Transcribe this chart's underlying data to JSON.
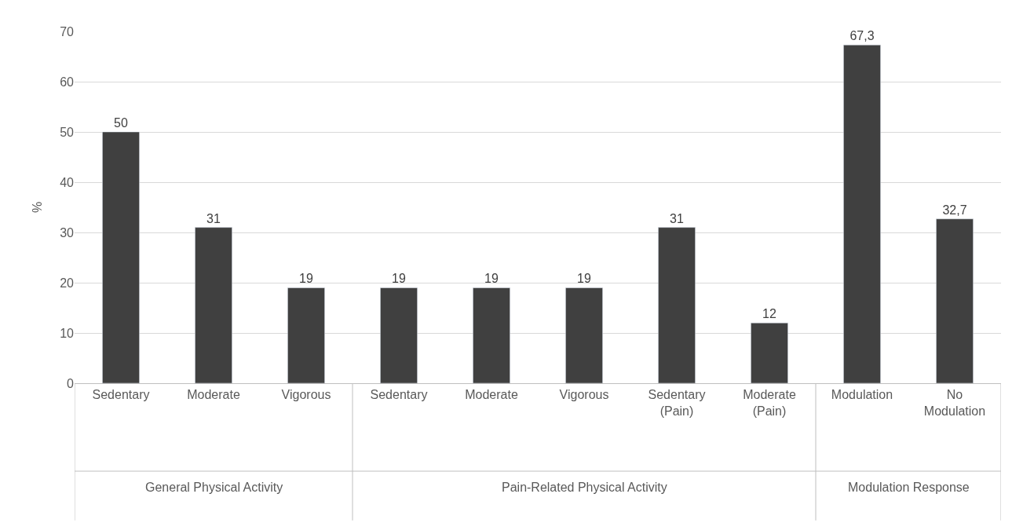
{
  "chart_data": {
    "type": "bar",
    "ylabel": "%",
    "categories": [
      "Sedentary",
      "Moderate",
      "Vigorous",
      "Sedentary",
      "Moderate",
      "Vigorous",
      "Sedentary\n(Pain)",
      "Moderate\n(Pain)",
      "Modulation",
      "No\nModulation"
    ],
    "values": [
      50,
      31,
      19,
      19,
      19,
      19,
      31,
      12,
      67.3,
      32.7
    ],
    "value_labels": [
      "50",
      "31",
      "19",
      "19",
      "19",
      "19",
      "31",
      "12",
      "67,3",
      "32,7"
    ],
    "color": "#404040",
    "ylim": [
      0,
      70
    ],
    "yticks": [
      0,
      10,
      20,
      30,
      40,
      50,
      60,
      70
    ],
    "grid": "y",
    "legend": false,
    "annotations": [
      "General Physical Activity",
      "Pain-Related Physical Activity",
      "Modulation Response"
    ]
  }
}
